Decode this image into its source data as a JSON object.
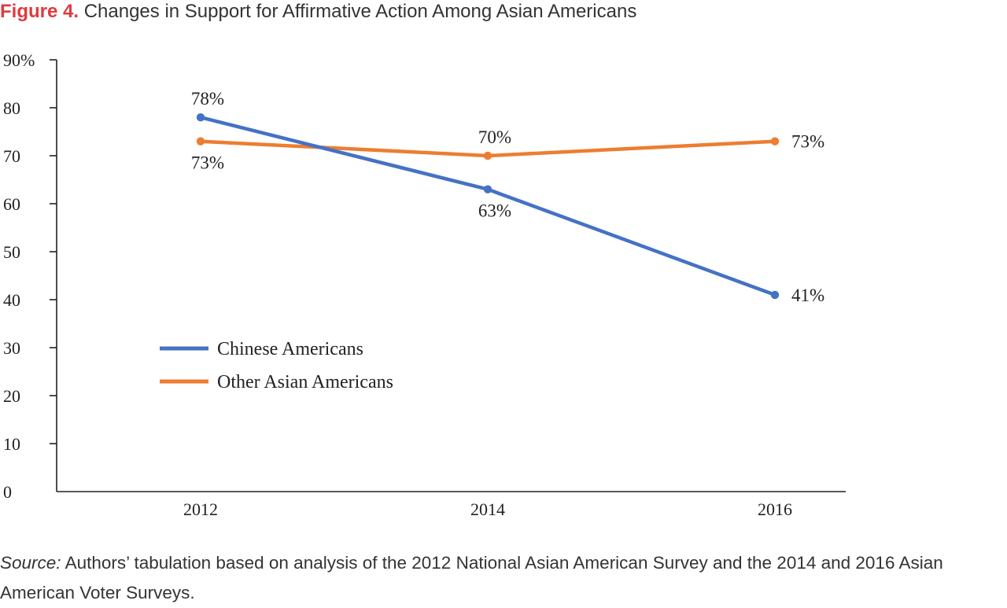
{
  "title": {
    "prefix": "Figure 4.",
    "text": "Changes in Support for Affirmative Action Among Asian Americans",
    "prefix_color": "#e03a3e"
  },
  "source": {
    "label": "Source:",
    "text": "Authors’ tabulation based on analysis of the 2012 National Asian American Survey and the 2014 and 2016 Asian American Voter Surveys."
  },
  "chart_data": {
    "type": "line",
    "x": [
      "2012",
      "2014",
      "2016"
    ],
    "ylim": [
      0,
      90
    ],
    "y_ticks": [
      0,
      10,
      20,
      30,
      40,
      50,
      60,
      70,
      80,
      90
    ],
    "y_tick_labels": [
      "0",
      "10",
      "20",
      "30",
      "40",
      "50",
      "60",
      "70",
      "80",
      "90%"
    ],
    "grid": false,
    "legend_position": "left-middle",
    "series": [
      {
        "name": "Chinese Americans",
        "color": "#4472c4",
        "values": [
          78,
          63,
          41
        ],
        "labels": [
          "78%",
          "63%",
          "41%"
        ],
        "label_positions": [
          "above",
          "below",
          "right"
        ]
      },
      {
        "name": "Other Asian Americans",
        "color": "#ed7d31",
        "values": [
          73,
          70,
          73
        ],
        "labels": [
          "73%",
          "70%",
          "73%"
        ],
        "label_positions": [
          "below",
          "above",
          "right"
        ]
      }
    ]
  }
}
